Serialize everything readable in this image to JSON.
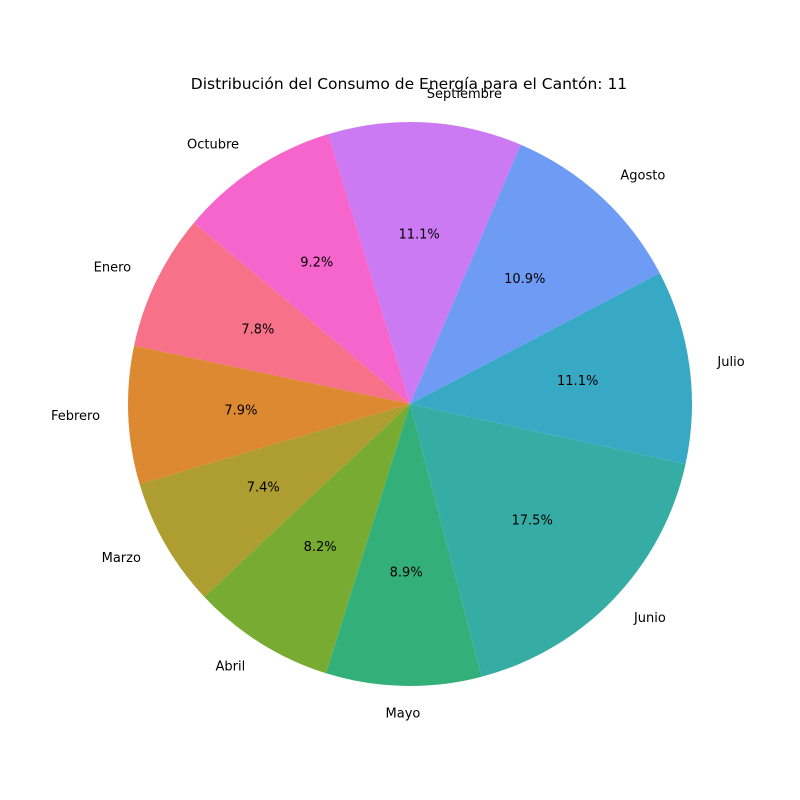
{
  "chart_data": {
    "type": "pie",
    "title": "Distribución del Consumo de Energía para el Cantón: 11",
    "start_angle_deg": 140,
    "direction": "counterclockwise",
    "slices": [
      {
        "label": "Enero",
        "value": 7.8,
        "pct_label": "7.8%",
        "color": "#f77189"
      },
      {
        "label": "Febrero",
        "value": 7.9,
        "pct_label": "7.9%",
        "color": "#dc8932"
      },
      {
        "label": "Marzo",
        "value": 7.4,
        "pct_label": "7.4%",
        "color": "#ae9d31"
      },
      {
        "label": "Abril",
        "value": 8.2,
        "pct_label": "8.2%",
        "color": "#77ab31"
      },
      {
        "label": "Mayo",
        "value": 8.9,
        "pct_label": "8.9%",
        "color": "#33b07a"
      },
      {
        "label": "Junio",
        "value": 17.5,
        "pct_label": "17.5%",
        "color": "#36ada4"
      },
      {
        "label": "Julio",
        "value": 11.1,
        "pct_label": "11.1%",
        "color": "#38a9c5"
      },
      {
        "label": "Agosto",
        "value": 10.9,
        "pct_label": "10.9%",
        "color": "#6e9bf4"
      },
      {
        "label": "Septiembre",
        "value": 11.1,
        "pct_label": "11.1%",
        "color": "#cc7af4"
      },
      {
        "label": "Octubre",
        "value": 9.2,
        "pct_label": "9.2%",
        "color": "#f565cc"
      }
    ]
  }
}
